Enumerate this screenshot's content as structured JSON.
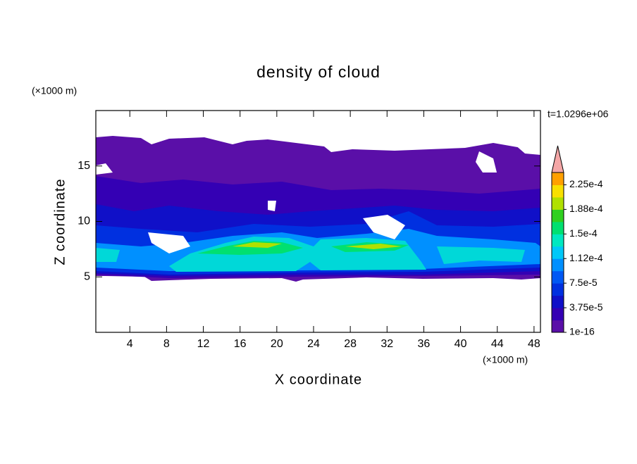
{
  "chart_data": {
    "type": "contour",
    "title": "density of cloud",
    "x_label": "X coordinate",
    "y_label": "Z coordinate",
    "x_unit": "(×1000 m)",
    "y_unit": "(×1000 m)",
    "time_label": "t=1.0296e+06",
    "xlim": [
      0.3,
      48.7
    ],
    "ylim": [
      0,
      20
    ],
    "xticks": [
      4,
      8,
      12,
      16,
      20,
      24,
      28,
      32,
      36,
      40,
      44,
      48
    ],
    "yticks": [
      5,
      10,
      15
    ],
    "colorbar": {
      "lim": [
        1e-16,
        0.00024375
      ],
      "ticks": [
        {
          "value": 1e-16,
          "label": "1e-16"
        },
        {
          "value": 3.75e-05,
          "label": "3.75e-5"
        },
        {
          "value": 7.5e-05,
          "label": "7.5e-5"
        },
        {
          "value": 0.0001125,
          "label": "1.12e-4"
        },
        {
          "value": 0.00015,
          "label": "1.5e-4"
        },
        {
          "value": 0.0001875,
          "label": "1.88e-4"
        },
        {
          "value": 0.000225,
          "label": "2.25e-4"
        }
      ],
      "colors": [
        "#5a0fa8",
        "#3400b4",
        "#1010c8",
        "#0030e0",
        "#0058f4",
        "#0090ff",
        "#00c8f8",
        "#00e8c0",
        "#00e070",
        "#30d020",
        "#b0e000",
        "#f8e000",
        "#ffa000"
      ],
      "extend_color": "#f4a6a6"
    }
  }
}
